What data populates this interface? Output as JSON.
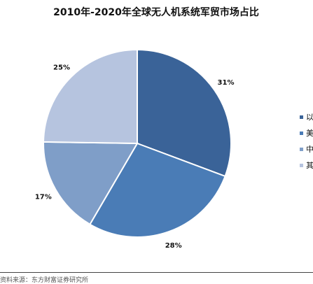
{
  "chart_data": {
    "type": "pie",
    "title": "2010年-2020年全球无人机系统军贸市场占比",
    "categories": [
      "以",
      "美",
      "中",
      "其"
    ],
    "values": [
      31,
      28,
      17,
      25
    ],
    "labels": [
      "31%",
      "28%",
      "17%",
      "25%"
    ],
    "colors": [
      "#3a6398",
      "#4a7cb6",
      "#7f9ec8",
      "#b6c4df"
    ],
    "legend_position": "right"
  },
  "source_text": "资料来源：东方财富证券研究所"
}
